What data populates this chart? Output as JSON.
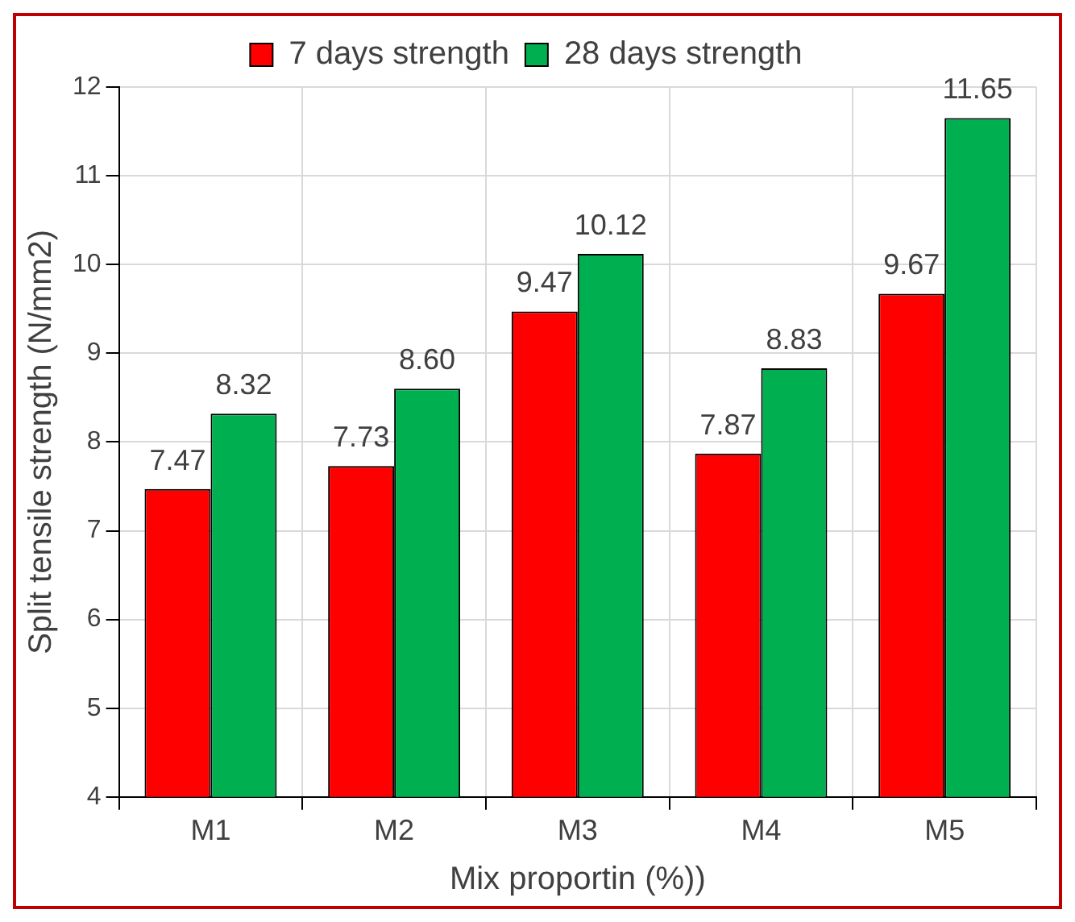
{
  "chart_data": {
    "type": "bar",
    "xlabel": "Mix proportin (%))",
    "ylabel": "Split tensile strength (N/mm2)",
    "categories": [
      "M1",
      "M2",
      "M3",
      "M4",
      "M5"
    ],
    "series": [
      {
        "name": "7 days strength",
        "color": "#ff0000",
        "values": [
          7.47,
          7.73,
          9.47,
          7.87,
          9.67
        ]
      },
      {
        "name": "28 days strength",
        "color": "#00b050",
        "values": [
          8.32,
          8.6,
          10.12,
          8.83,
          11.65
        ]
      }
    ],
    "value_labels": [
      [
        "7.47",
        "7.73",
        "9.47",
        "7.87",
        "9.67"
      ],
      [
        "8.32",
        "8.60",
        "10.12",
        "8.83",
        "11.65"
      ]
    ],
    "ylim": [
      4,
      12
    ],
    "yticks": [
      4,
      5,
      6,
      7,
      8,
      9,
      10,
      11,
      12
    ],
    "grid": true,
    "legend": "top"
  }
}
